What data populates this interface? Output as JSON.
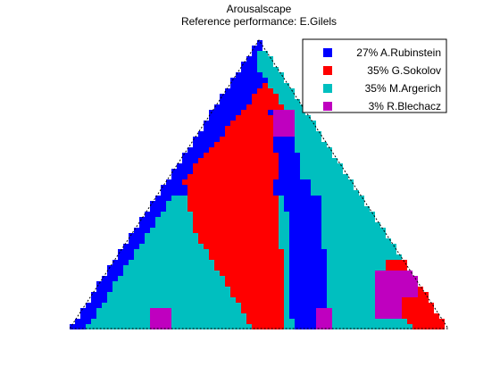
{
  "chart_data": {
    "type": "heatmap",
    "title": "Arousalscape",
    "subtitle": "Reference performance: E.Gilels",
    "legend_position": "top-right",
    "series": [
      {
        "name": "27% A.Rubinstein",
        "share": 27,
        "color": "#0000ff"
      },
      {
        "name": "35% G.Sokolov",
        "share": 35,
        "color": "#ff0000"
      },
      {
        "name": "35% M.Argerich",
        "share": 35,
        "color": "#00bfbf"
      },
      {
        "name": "3% R.Blechacz",
        "share": 3,
        "color": "#bf00bf"
      }
    ],
    "grid": false
  }
}
